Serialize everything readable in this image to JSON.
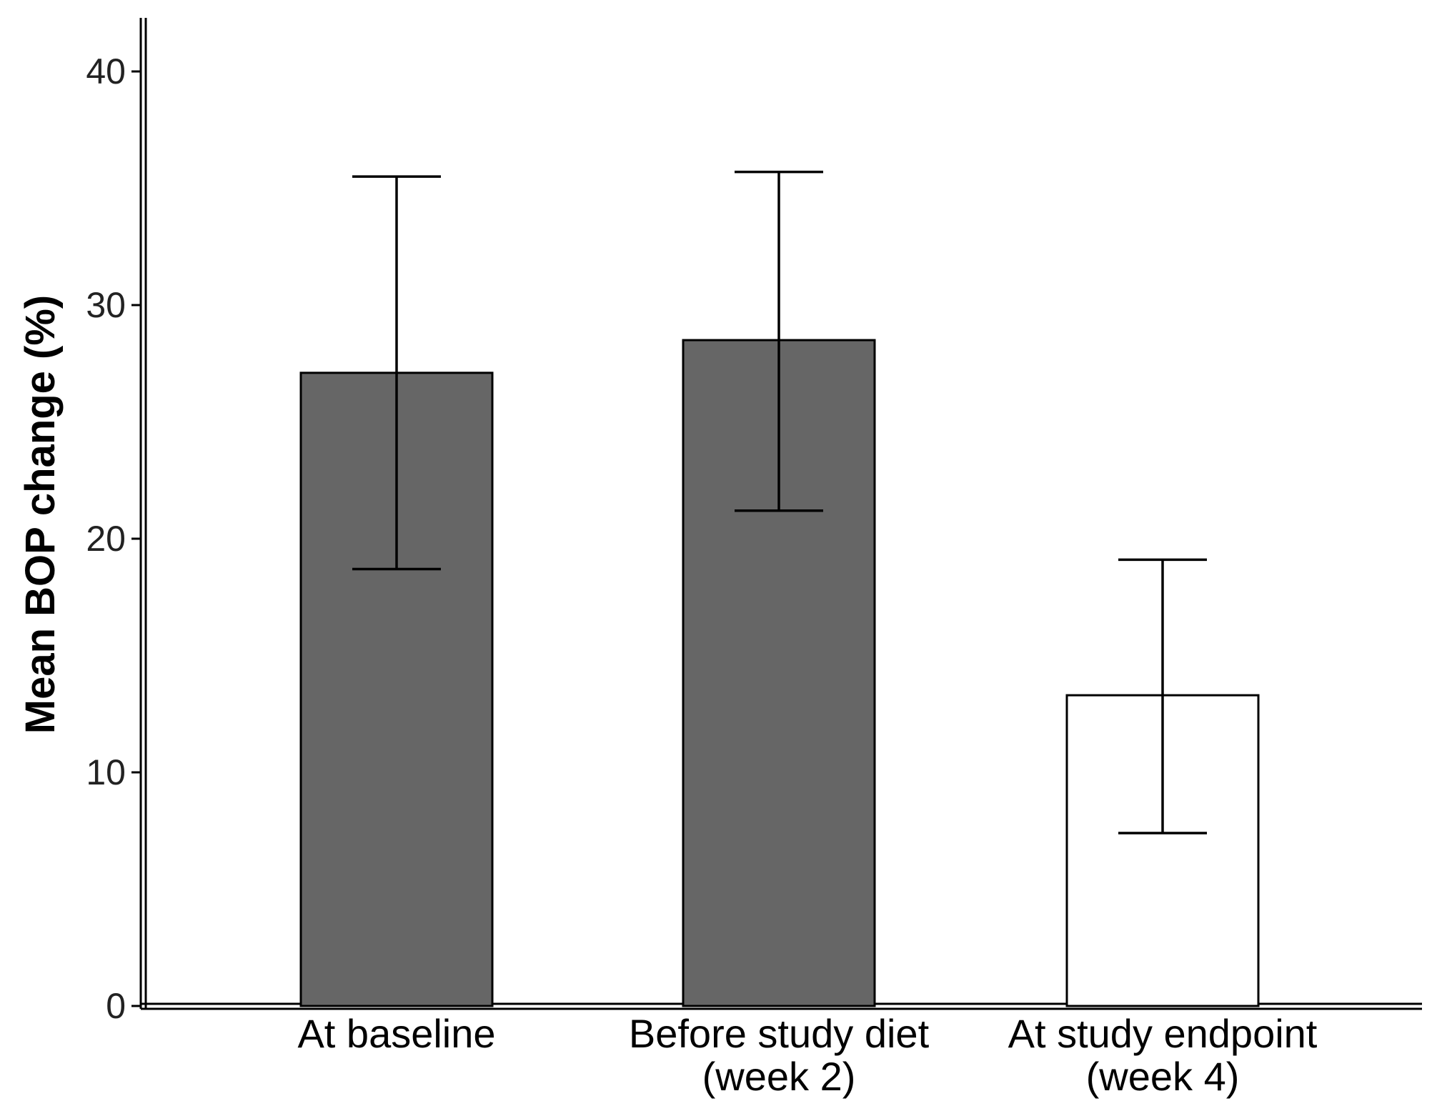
{
  "chart_data": {
    "type": "bar",
    "title": "",
    "xlabel": "",
    "ylabel": "Mean BOP change (%)",
    "ylim": [
      0,
      42
    ],
    "yticks": [
      0,
      10,
      20,
      30,
      40
    ],
    "grid": false,
    "categories": [
      [
        "At baseline"
      ],
      [
        "Before study diet",
        "(week 2)"
      ],
      [
        "At study endpoint",
        "(week 4)"
      ]
    ],
    "values": [
      27.1,
      28.5,
      13.3
    ],
    "error_low": [
      18.7,
      21.2,
      7.4
    ],
    "error_high": [
      35.5,
      35.7,
      19.1
    ],
    "colors": [
      "#666666",
      "#666666",
      "#ffffff"
    ]
  }
}
